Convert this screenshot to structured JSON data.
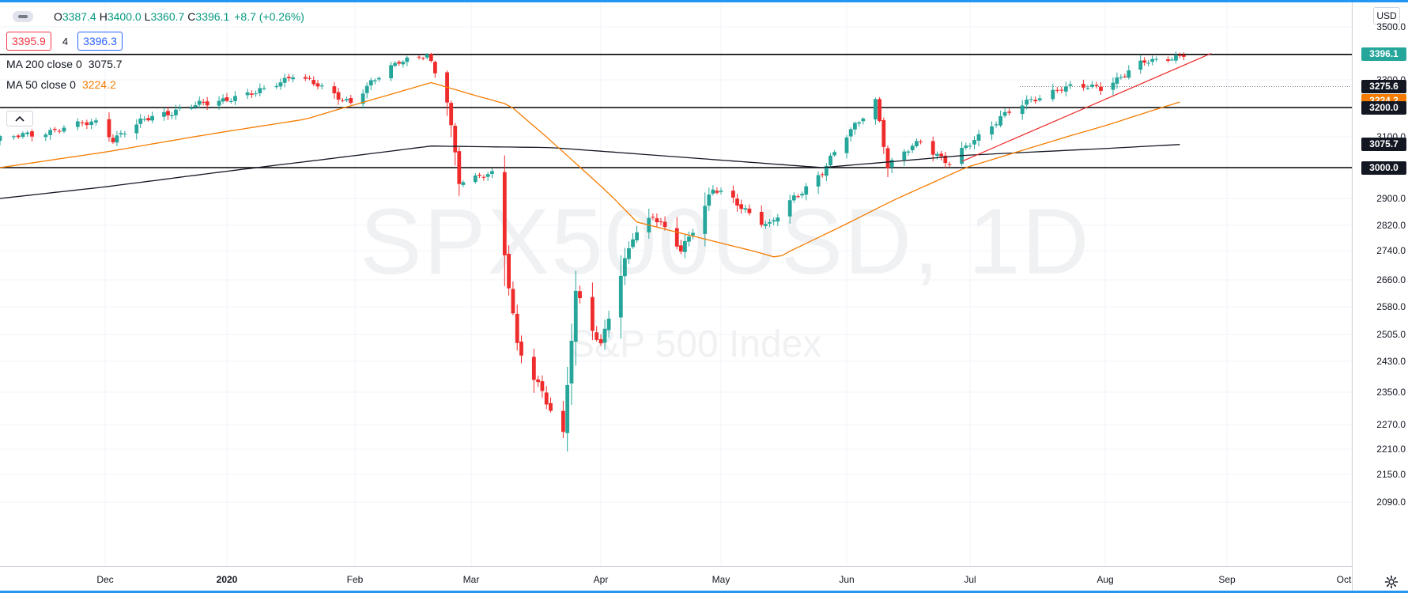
{
  "watermark": {
    "symbol": "SPX500USD, 1D",
    "subtitle": "S&P 500 Index"
  },
  "legend": {
    "ohlc": [
      {
        "key": "O",
        "value": "3387.4"
      },
      {
        "key": "H",
        "value": "3400.0"
      },
      {
        "key": "L",
        "value": "3360.7"
      },
      {
        "key": "C",
        "value": "3396.1"
      }
    ],
    "change": "+8.7 (+0.26%)",
    "bid": "3395.9",
    "spread": "4",
    "ask": "3396.3",
    "ma200": {
      "label": "MA 200 close 0",
      "value": "3075.7"
    },
    "ma50": {
      "label": "MA 50 close 0",
      "value": "3224.2"
    }
  },
  "price_scale": {
    "currency": "USD",
    "ticks": [
      "3500.0",
      "3300.0",
      "3100.0",
      "2900.0",
      "2820.0",
      "2740.0",
      "2660.0",
      "2580.0",
      "2505.0",
      "2430.0",
      "2350.0",
      "2270.0",
      "2210.0",
      "2150.0",
      "2090.0"
    ],
    "labels": [
      {
        "name": "last-price-label",
        "value": "3396.1",
        "color": "#26a69a"
      },
      {
        "name": "level-3275-label",
        "value": "3275.6",
        "color": "#131722"
      },
      {
        "name": "ma50-price-label",
        "value": "3224.2",
        "color": "#f57c00"
      },
      {
        "name": "level-3200-label",
        "value": "3200.0",
        "color": "#131722"
      },
      {
        "name": "ma200-price-label",
        "value": "3075.7",
        "color": "#131722"
      },
      {
        "name": "level-3000-label",
        "value": "3000.0",
        "color": "#131722"
      }
    ]
  },
  "time_scale": {
    "labels": [
      {
        "text": "Dec",
        "year": false
      },
      {
        "text": "2020",
        "year": true
      },
      {
        "text": "Feb",
        "year": false
      },
      {
        "text": "Mar",
        "year": false
      },
      {
        "text": "Apr",
        "year": false
      },
      {
        "text": "May",
        "year": false
      },
      {
        "text": "Jun",
        "year": false
      },
      {
        "text": "Jul",
        "year": false
      },
      {
        "text": "Aug",
        "year": false
      },
      {
        "text": "Sep",
        "year": false
      },
      {
        "text": "Oct",
        "year": false
      }
    ]
  },
  "colors": {
    "up": "#26a69a",
    "down": "#ef2b2b",
    "ma50": "#f57c00",
    "ma200": "#131722",
    "trend": "#ef2b2b",
    "accent": "#2196f3"
  },
  "chart_data": {
    "type": "candlestick",
    "symbol": "SPX500USD",
    "interval": "1D",
    "currency": "USD",
    "x_range": [
      "2019-11-08",
      "2020-08-21"
    ],
    "horizontal_levels": [
      3396.1,
      3275.6,
      3200.0,
      3000.0
    ],
    "trendline": {
      "from": {
        "date": "2020-06-29",
        "price": 3020
      },
      "to": {
        "date": "2020-08-28",
        "price": 3400
      }
    },
    "last_close": 3396.1,
    "daily_close_anchors": [
      [
        "2019-11-08",
        3090
      ],
      [
        "2019-11-29",
        3150
      ],
      [
        "2019-12-03",
        3095
      ],
      [
        "2019-12-13",
        3170
      ],
      [
        "2019-12-31",
        3230
      ],
      [
        "2020-01-08",
        3250
      ],
      [
        "2020-01-17",
        3320
      ],
      [
        "2020-01-31",
        3220
      ],
      [
        "2020-02-12",
        3375
      ],
      [
        "2020-02-19",
        3390
      ],
      [
        "2020-02-24",
        3225
      ],
      [
        "2020-02-27",
        2960
      ],
      [
        "2020-03-06",
        2975
      ],
      [
        "2020-03-12",
        2480
      ],
      [
        "2020-03-16",
        2390
      ],
      [
        "2020-03-20",
        2300
      ],
      [
        "2020-03-23",
        2240
      ],
      [
        "2020-03-26",
        2630
      ],
      [
        "2020-04-01",
        2470
      ],
      [
        "2020-04-09",
        2790
      ],
      [
        "2020-04-14",
        2850
      ],
      [
        "2020-04-21",
        2740
      ],
      [
        "2020-04-29",
        2930
      ],
      [
        "2020-05-13",
        2820
      ],
      [
        "2020-05-26",
        2990
      ],
      [
        "2020-06-08",
        3230
      ],
      [
        "2020-06-11",
        3000
      ],
      [
        "2020-06-19",
        3090
      ],
      [
        "2020-06-26",
        3010
      ],
      [
        "2020-07-08",
        3170
      ],
      [
        "2020-07-22",
        3275
      ],
      [
        "2020-07-31",
        3270
      ],
      [
        "2020-08-10",
        3360
      ],
      [
        "2020-08-21",
        3396.1
      ]
    ],
    "ma50_anchors": [
      [
        "2019-11-08",
        3000
      ],
      [
        "2020-01-20",
        3160
      ],
      [
        "2020-02-20",
        3290
      ],
      [
        "2020-03-10",
        3210
      ],
      [
        "2020-04-10",
        2830
      ],
      [
        "2020-05-15",
        2720
      ],
      [
        "2020-06-10",
        2880
      ],
      [
        "2020-06-30",
        3000
      ],
      [
        "2020-08-21",
        3224.2
      ]
    ],
    "ma200_anchors": [
      [
        "2019-11-08",
        2900
      ],
      [
        "2020-02-20",
        3070
      ],
      [
        "2020-03-20",
        3065
      ],
      [
        "2020-05-26",
        3000
      ],
      [
        "2020-06-30",
        3040
      ],
      [
        "2020-08-21",
        3075.7
      ]
    ]
  }
}
